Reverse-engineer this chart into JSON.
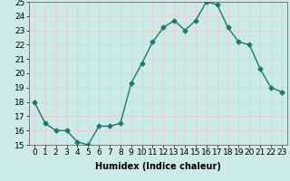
{
  "x": [
    0,
    1,
    2,
    3,
    4,
    5,
    6,
    7,
    8,
    9,
    10,
    11,
    12,
    13,
    14,
    15,
    16,
    17,
    18,
    19,
    20,
    21,
    22,
    23
  ],
  "y": [
    18.0,
    16.5,
    16.0,
    16.0,
    15.2,
    15.0,
    16.3,
    16.3,
    16.5,
    19.3,
    20.7,
    22.2,
    23.2,
    23.7,
    23.0,
    23.7,
    25.0,
    24.8,
    23.2,
    22.2,
    22.0,
    20.3,
    19.0,
    18.7
  ],
  "line_color": "#1a7a6e",
  "marker": "D",
  "marker_size": 2.5,
  "linewidth": 1.0,
  "bg_color": "#cceae7",
  "grid_color": "#e8c8c8",
  "xlabel": "Humidex (Indice chaleur)",
  "xlabel_fontsize": 7,
  "tick_fontsize": 6.5,
  "ylim": [
    15,
    25
  ],
  "xlim": [
    -0.5,
    23.5
  ],
  "yticks": [
    15,
    16,
    17,
    18,
    19,
    20,
    21,
    22,
    23,
    24,
    25
  ],
  "xtick_labels": [
    "0",
    "1",
    "2",
    "3",
    "4",
    "5",
    "6",
    "7",
    "8",
    "9",
    "10",
    "11",
    "12",
    "13",
    "14",
    "15",
    "16",
    "17",
    "18",
    "19",
    "20",
    "21",
    "22",
    "23"
  ]
}
